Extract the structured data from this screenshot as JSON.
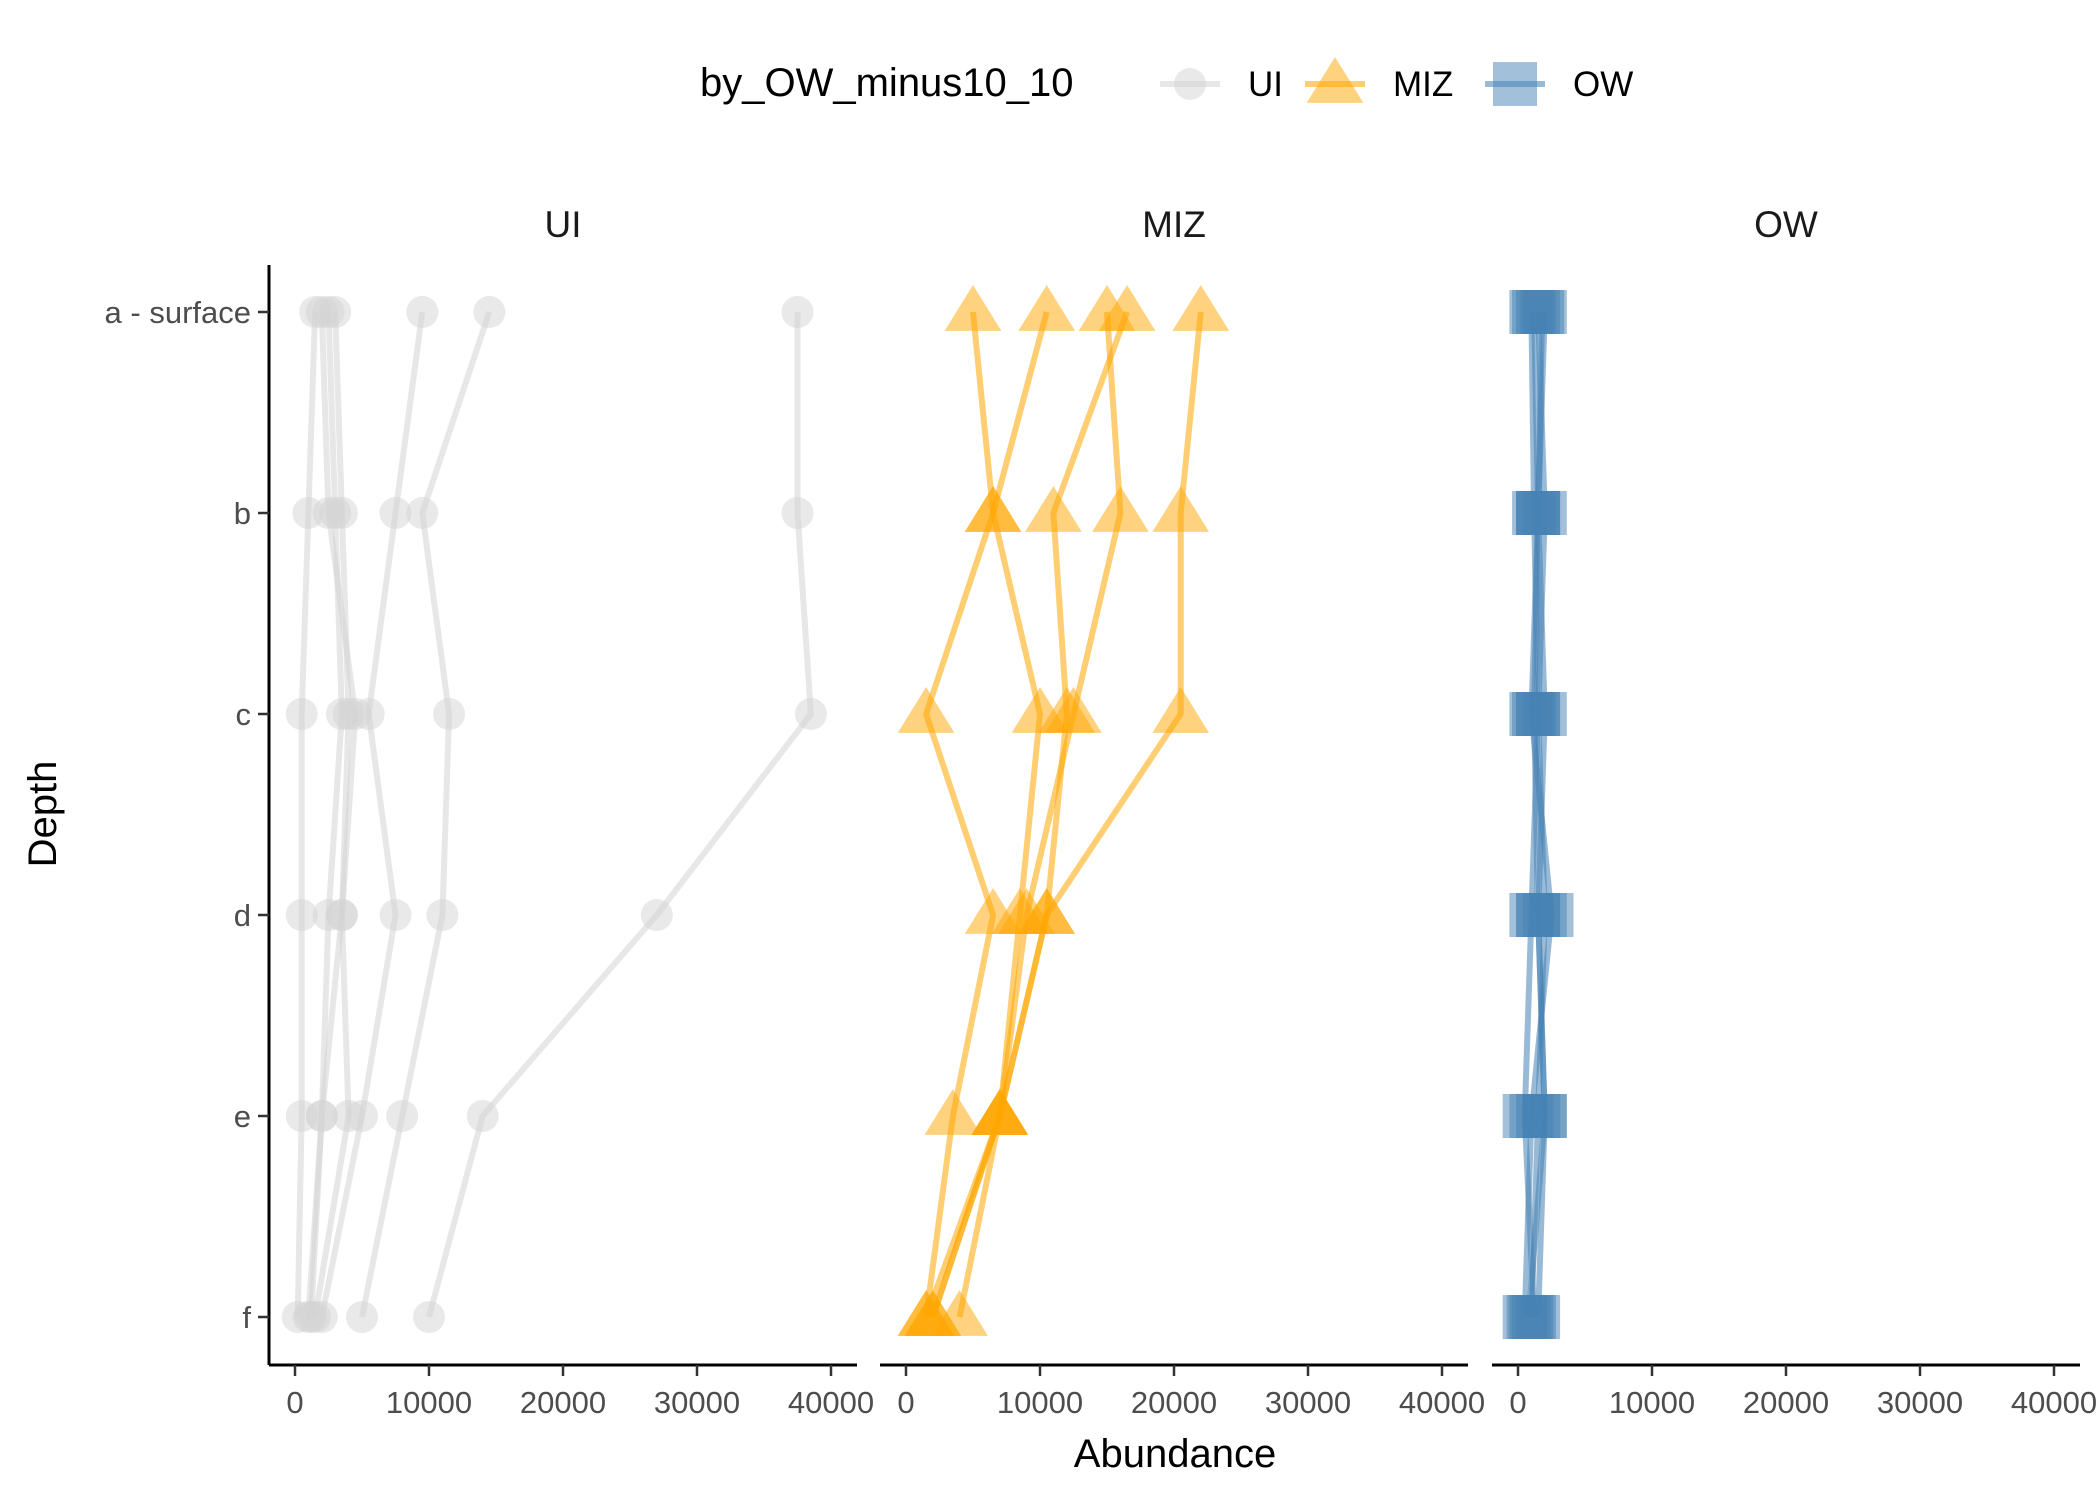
{
  "chart_data": {
    "type": "line",
    "xlabel": "Abundance",
    "ylabel": "Depth",
    "depth_levels": [
      "a - surface",
      "b",
      "c",
      "d",
      "e",
      "f"
    ],
    "xlim": [
      0,
      40000
    ],
    "x_ticks": [
      0,
      10000,
      20000,
      30000,
      40000
    ],
    "x_tick_labels": [
      "0",
      "10000",
      "20000",
      "30000",
      "40000"
    ],
    "legend": {
      "title": "by_OW_minus10_10",
      "position": "top",
      "entries": [
        {
          "label": "UI",
          "color": "#d3d3d3",
          "shape": "circle"
        },
        {
          "label": "MIZ",
          "color": "#ffa500",
          "shape": "triangle"
        },
        {
          "label": "OW",
          "color": "#4682b4",
          "shape": "square"
        }
      ]
    },
    "panels": [
      {
        "label": "UI",
        "color": "#d3d3d3",
        "shape": "circle",
        "profiles": [
          [
            37500,
            37500,
            38500,
            27000,
            14000,
            10000
          ],
          [
            14500,
            9500,
            11500,
            11000,
            8000,
            5000
          ],
          [
            9500,
            7500,
            5500,
            7500,
            5000,
            2000
          ],
          [
            3000,
            3500,
            4000,
            3500,
            4000,
            1500
          ],
          [
            2500,
            3000,
            3500,
            2500,
            2000,
            1000
          ],
          [
            1500,
            1000,
            500,
            500,
            500,
            200
          ],
          [
            2000,
            2500,
            4500,
            3500,
            2000,
            1200
          ]
        ]
      },
      {
        "label": "MIZ",
        "color": "#ffa500",
        "shape": "triangle",
        "profiles": [
          [
            22000,
            20500,
            20500,
            10500,
            7000,
            2000
          ],
          [
            15000,
            16000,
            12500,
            9000,
            7000,
            1500
          ],
          [
            16500,
            11000,
            12000,
            10500,
            7000,
            4000
          ],
          [
            10500,
            6500,
            10000,
            8500,
            7000,
            2000
          ],
          [
            5000,
            6500,
            1500,
            6500,
            3500,
            1500
          ]
        ]
      },
      {
        "label": "OW",
        "color": "#4682b4",
        "shape": "square",
        "profiles": [
          [
            1500,
            2000,
            1500,
            2000,
            1500,
            1000
          ],
          [
            1200,
            1500,
            2000,
            1500,
            2000,
            1500
          ],
          [
            2000,
            1500,
            1000,
            2500,
            1000,
            500
          ],
          [
            1000,
            1200,
            1500,
            1000,
            500,
            1200
          ],
          [
            1800,
            1500,
            1200,
            1500,
            2000,
            800
          ]
        ]
      }
    ]
  }
}
